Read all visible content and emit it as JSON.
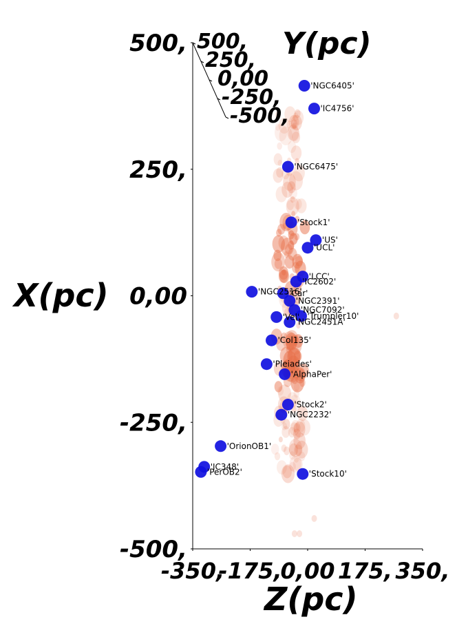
{
  "chart_data": {
    "type": "scatter",
    "title": "",
    "xlabel": "Z(pc)",
    "ylabel": "X(pc)",
    "zlabel": "Y(pc)",
    "xlim": [
      -350,
      350
    ],
    "ylim": [
      -500,
      500
    ],
    "zlim": [
      -500,
      500
    ],
    "x_ticks": [
      "-350,",
      "-175,",
      "0,00",
      "175,",
      "350,"
    ],
    "y_ticks": [
      "500,",
      "250,",
      "0,00",
      "-250,",
      "-500,"
    ],
    "z_ticks": [
      "500,",
      "250,",
      "0,00",
      "-250,",
      "-500,"
    ],
    "marker_color": "#1010e0",
    "cloud_color": "#e8704a",
    "points": [
      {
        "name": "'NGC6405'",
        "z": -10,
        "x": 415
      },
      {
        "name": "'IC4756'",
        "z": 20,
        "x": 370
      },
      {
        "name": "'NGC6475'",
        "z": -60,
        "x": 255
      },
      {
        "name": "'Stock1'",
        "z": -50,
        "x": 145
      },
      {
        "name": "'US'",
        "z": 25,
        "x": 110
      },
      {
        "name": "'UCL'",
        "z": 0,
        "x": 95
      },
      {
        "name": "'LCC'",
        "z": -15,
        "x": 38
      },
      {
        "name": "'IC2602'",
        "z": -35,
        "x": 28
      },
      {
        "name": "'NGC2516'",
        "z": -170,
        "x": 8
      },
      {
        "name": "'Car'",
        "z": -75,
        "x": 5
      },
      {
        "name": "'NGC2391'",
        "z": -55,
        "x": -10
      },
      {
        "name": "'NGC7092'",
        "z": -40,
        "x": -28
      },
      {
        "name": "'Trumpler10'",
        "z": -20,
        "x": -40
      },
      {
        "name": "'Vel'",
        "z": -95,
        "x": -42
      },
      {
        "name": "'NGC2451A'",
        "z": -55,
        "x": -52
      },
      {
        "name": "'Col135'",
        "z": -110,
        "x": -88
      },
      {
        "name": "'Pleiades'",
        "z": -125,
        "x": -135
      },
      {
        "name": "'AlphaPer'",
        "z": -70,
        "x": -155
      },
      {
        "name": "'Stock2'",
        "z": -60,
        "x": -215
      },
      {
        "name": "'NGC2232'",
        "z": -80,
        "x": -235
      },
      {
        "name": "'OrionOB1'",
        "z": -265,
        "x": -297
      },
      {
        "name": "'IC348'",
        "z": -315,
        "x": -338
      },
      {
        "name": "'PerOB2'",
        "z": -325,
        "x": -348
      },
      {
        "name": "'Stock10'",
        "z": -15,
        "x": -352
      }
    ]
  }
}
